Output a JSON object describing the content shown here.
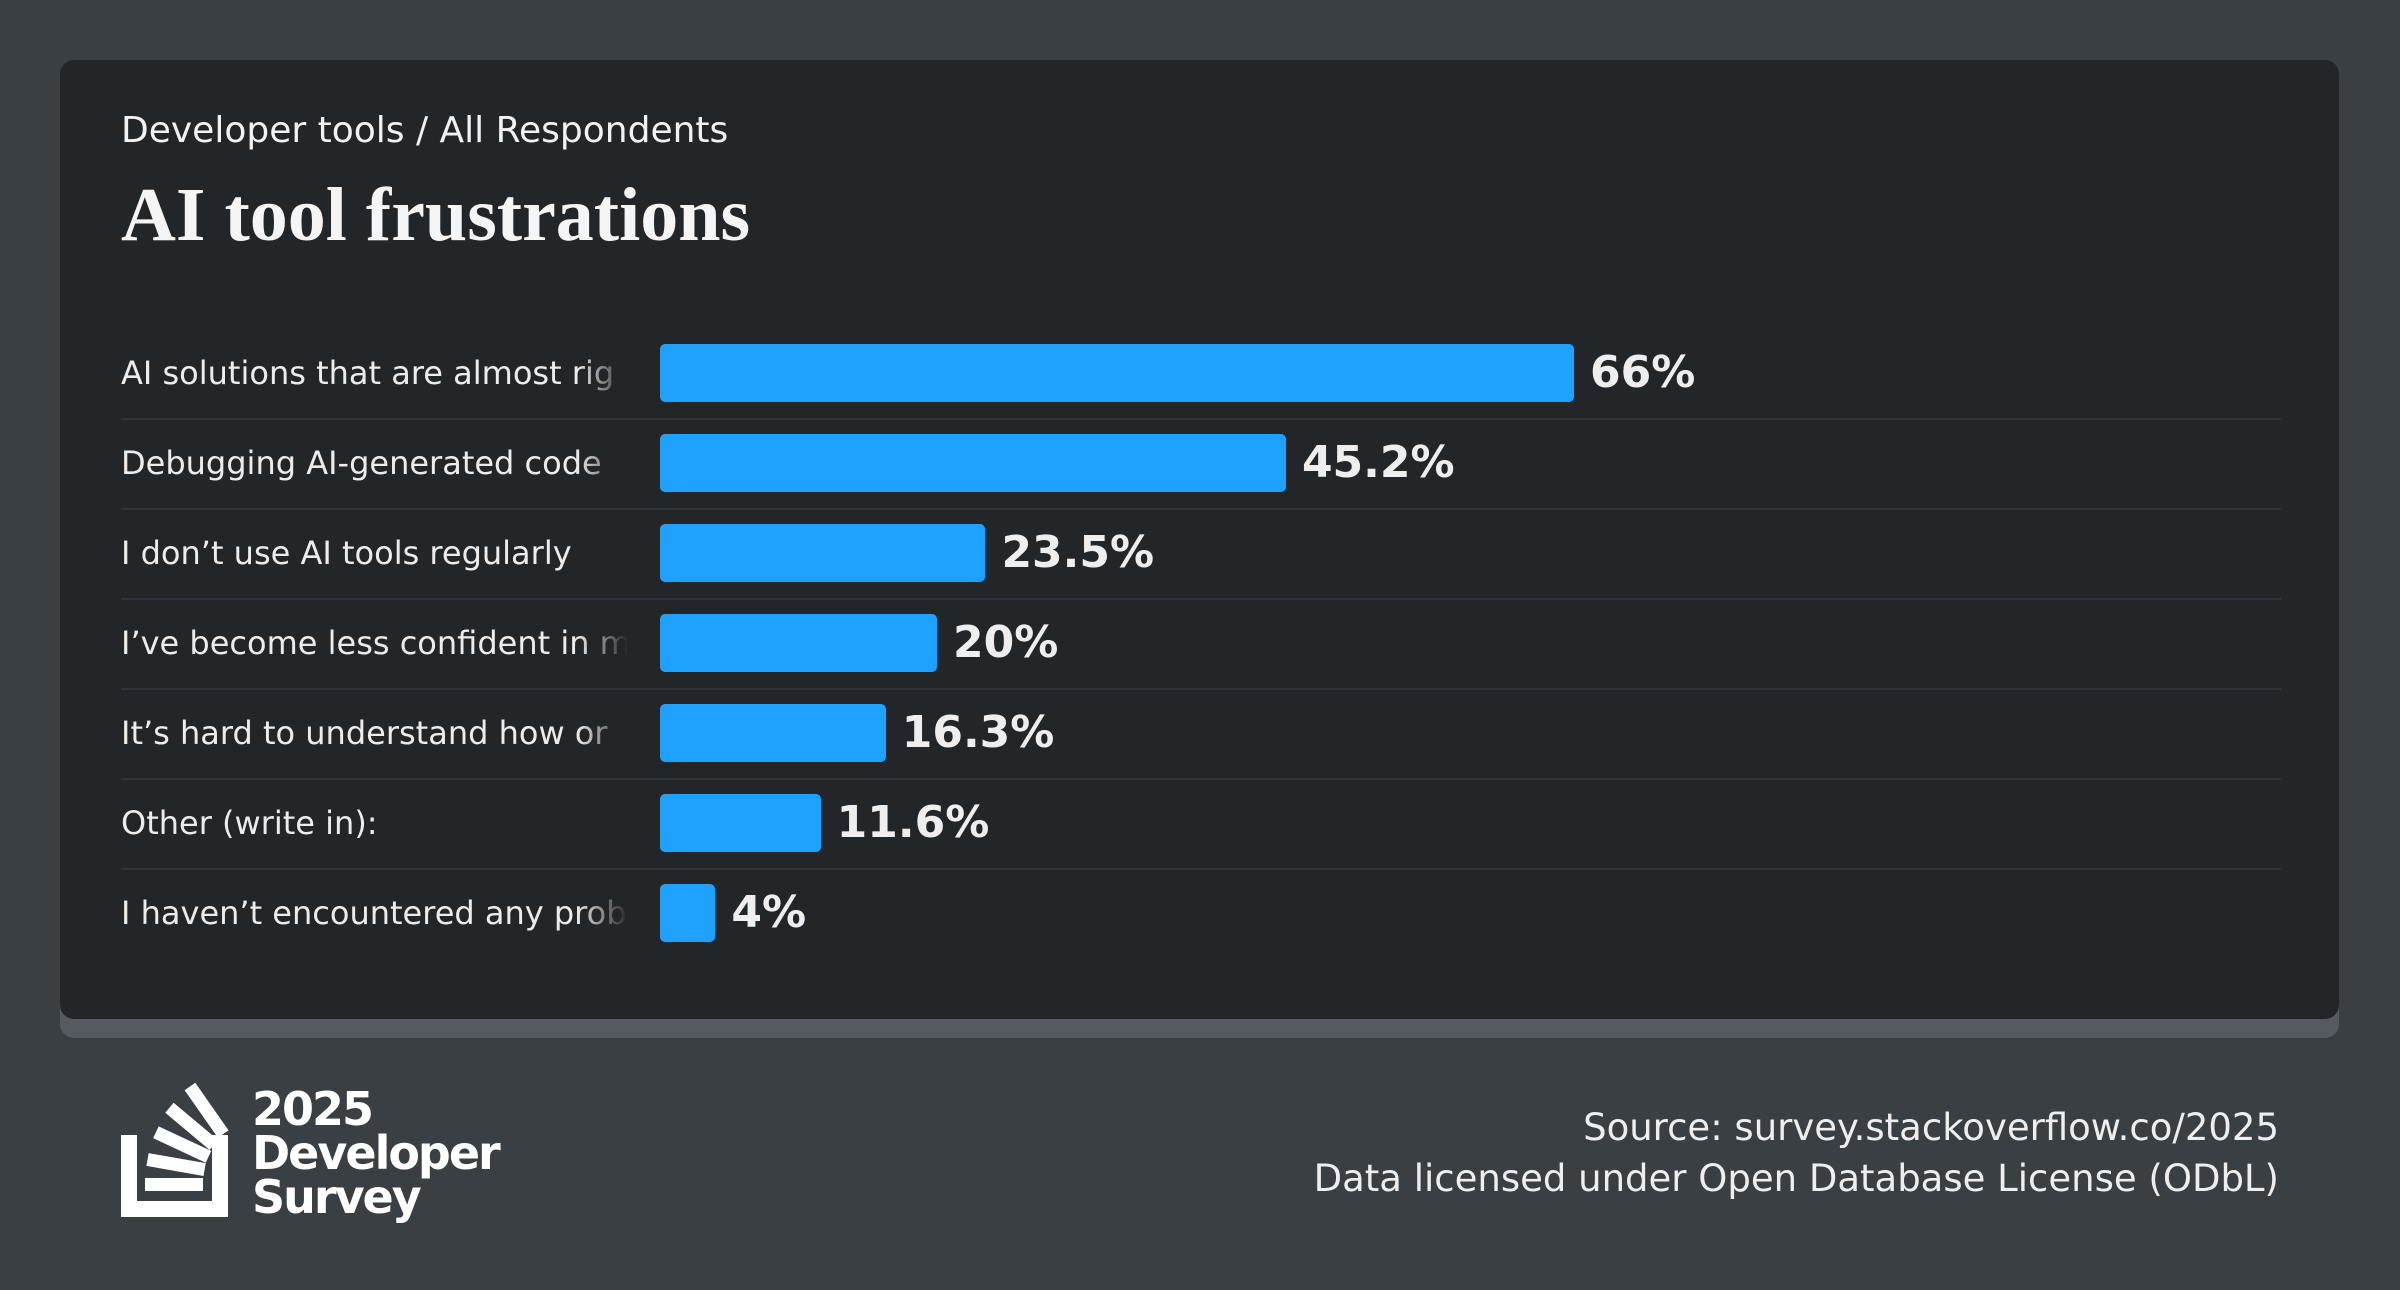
{
  "chart_data": {
    "type": "bar",
    "orientation": "horizontal",
    "subtitle": "Developer tools / All Respondents",
    "title": "AI tool frustrations",
    "categories": [
      "AI solutions that are almost rig",
      "Debugging AI-generated code",
      "I don’t use AI tools regularly",
      "I’ve become less confident in m",
      "It’s hard to understand how or",
      "Other (write in):",
      "I haven’t encountered any prob"
    ],
    "values": [
      66,
      45.2,
      23.5,
      20,
      16.3,
      11.6,
      4
    ],
    "value_labels": [
      "66%",
      "45.2%",
      "23.5%",
      "20%",
      "16.3%",
      "11.6%",
      "4%"
    ],
    "color": "#1ea1ff"
  },
  "footer": {
    "logo": [
      "2025",
      "Developer",
      "Survey"
    ],
    "source": "Source: survey.stackoverflow.co/2025",
    "license": "Data licensed under Open Database License (ODbL)"
  }
}
